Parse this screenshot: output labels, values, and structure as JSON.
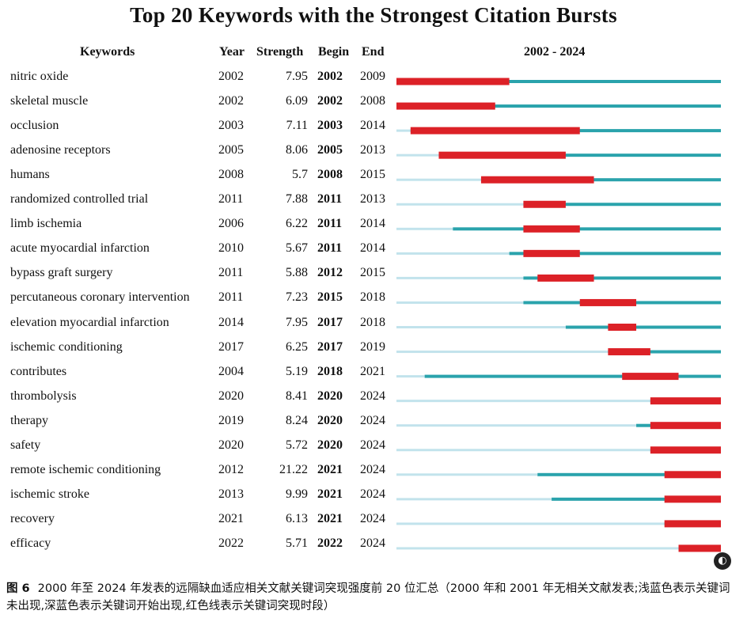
{
  "title": "Top 20 Keywords with the Strongest Citation Bursts",
  "headers": {
    "keywords": "Keywords",
    "year": "Year",
    "strength": "Strength",
    "begin": "Begin",
    "end": "End",
    "timeline": "2002 - 2024"
  },
  "colors": {
    "not_yet": "#c2e3ec",
    "present": "#2aa3ac",
    "burst": "#dc2127"
  },
  "chart_data": {
    "type": "table",
    "timeline_range": [
      2002,
      2024
    ],
    "rows": [
      {
        "keyword": "nitric oxide",
        "year": "2002",
        "strength": "7.95",
        "begin": "2002",
        "end": "2009"
      },
      {
        "keyword": "skeletal muscle",
        "year": "2002",
        "strength": "6.09",
        "begin": "2002",
        "end": "2008"
      },
      {
        "keyword": "occlusion",
        "year": "2003",
        "strength": "7.11",
        "begin": "2003",
        "end": "2014"
      },
      {
        "keyword": "adenosine receptors",
        "year": "2005",
        "strength": "8.06",
        "begin": "2005",
        "end": "2013"
      },
      {
        "keyword": "humans",
        "year": "2008",
        "strength": "5.7",
        "begin": "2008",
        "end": "2015"
      },
      {
        "keyword": "randomized controlled trial",
        "year": "2011",
        "strength": "7.88",
        "begin": "2011",
        "end": "2013"
      },
      {
        "keyword": "limb ischemia",
        "year": "2006",
        "strength": "6.22",
        "begin": "2011",
        "end": "2014"
      },
      {
        "keyword": "acute myocardial infarction",
        "year": "2010",
        "strength": "5.67",
        "begin": "2011",
        "end": "2014"
      },
      {
        "keyword": "bypass graft surgery",
        "year": "2011",
        "strength": "5.88",
        "begin": "2012",
        "end": "2015"
      },
      {
        "keyword": "percutaneous coronary intervention",
        "year": "2011",
        "strength": "7.23",
        "begin": "2015",
        "end": "2018"
      },
      {
        "keyword": "elevation myocardial infarction",
        "year": "2014",
        "strength": "7.95",
        "begin": "2017",
        "end": "2018"
      },
      {
        "keyword": "ischemic conditioning",
        "year": "2017",
        "strength": "6.25",
        "begin": "2017",
        "end": "2019"
      },
      {
        "keyword": "contributes",
        "year": "2004",
        "strength": "5.19",
        "begin": "2018",
        "end": "2021"
      },
      {
        "keyword": "thrombolysis",
        "year": "2020",
        "strength": "8.41",
        "begin": "2020",
        "end": "2024"
      },
      {
        "keyword": "therapy",
        "year": "2019",
        "strength": "8.24",
        "begin": "2020",
        "end": "2024"
      },
      {
        "keyword": "safety",
        "year": "2020",
        "strength": "5.72",
        "begin": "2020",
        "end": "2024"
      },
      {
        "keyword": "remote ischemic conditioning",
        "year": "2012",
        "strength": "21.22",
        "begin": "2021",
        "end": "2024"
      },
      {
        "keyword": "ischemic stroke",
        "year": "2013",
        "strength": "9.99",
        "begin": "2021",
        "end": "2024"
      },
      {
        "keyword": "recovery",
        "year": "2021",
        "strength": "6.13",
        "begin": "2021",
        "end": "2024"
      },
      {
        "keyword": "efficacy",
        "year": "2022",
        "strength": "5.71",
        "begin": "2022",
        "end": "2024"
      }
    ]
  },
  "caption": {
    "label": "图 6",
    "text": "2000 年至 2024 年发表的远隔缺血适应相关文献关键词突现强度前 20 位汇总（2000 年和 2001 年无相关文献发表;浅蓝色表示关键词未出现,深蓝色表示关键词开始出现,红色线表示关键词突现时段）"
  },
  "watermark_icon": "logo-icon"
}
